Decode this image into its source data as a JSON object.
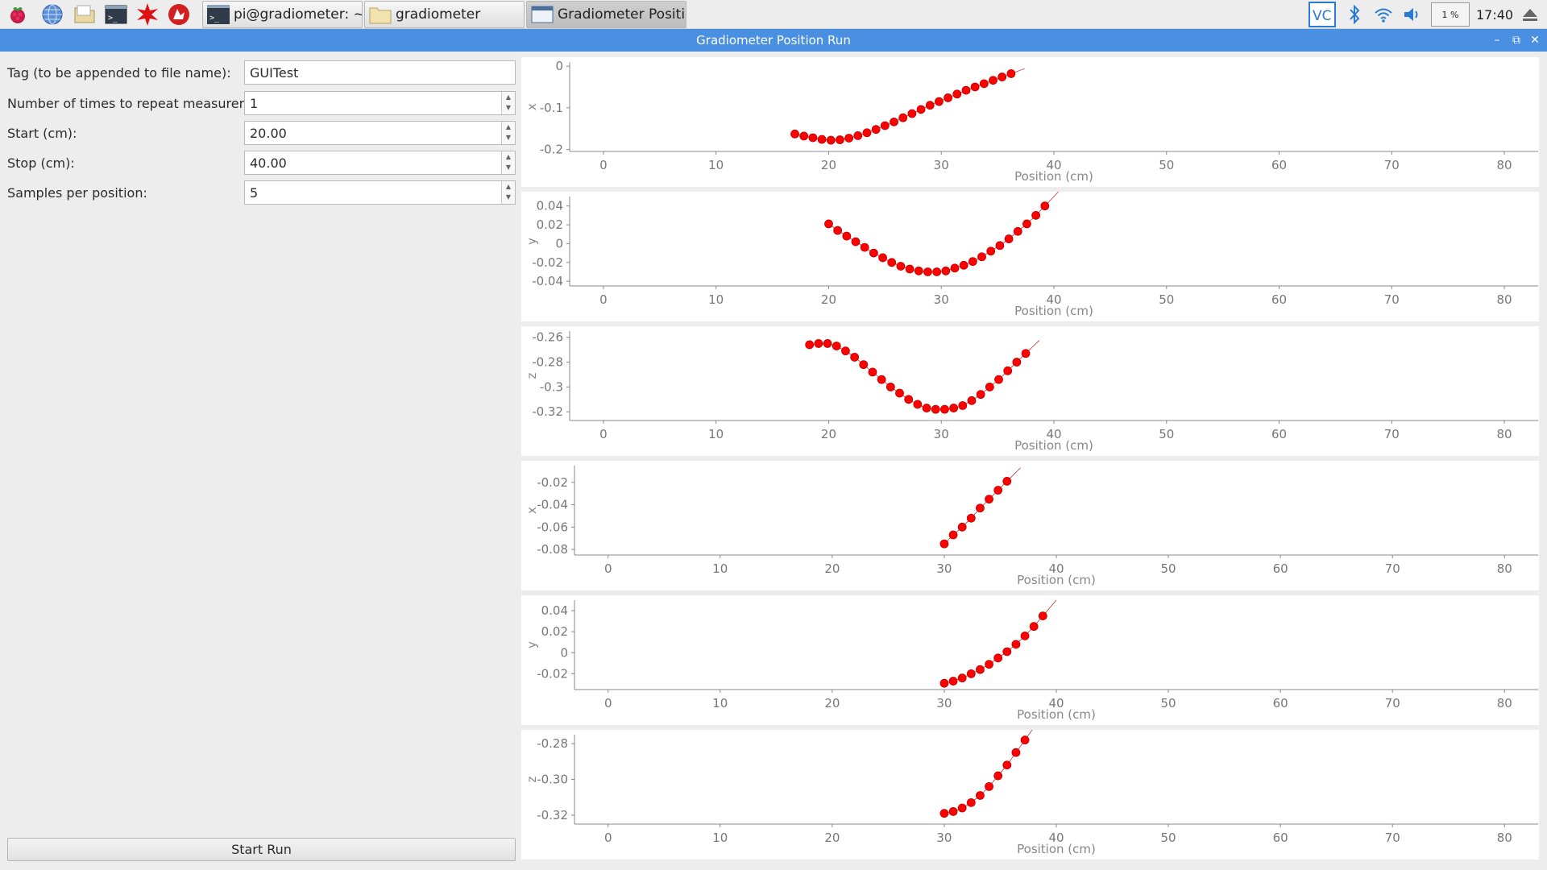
{
  "taskbar": {
    "launchers": [
      "raspberry-menu-icon",
      "web-browser-icon",
      "file-manager-icon",
      "terminal-icon",
      "mathematica-icon",
      "wolfram-icon"
    ],
    "windows": [
      {
        "label": "pi@gradiometer: ~/gr...",
        "icon": "terminal-icon",
        "active": false
      },
      {
        "label": "gradiometer",
        "icon": "folder-icon",
        "active": false
      },
      {
        "label": "Gradiometer Position ...",
        "icon": "window-icon",
        "active": true
      }
    ],
    "tray": {
      "cpu": "1 %",
      "clock": "17:40"
    }
  },
  "window": {
    "title": "Gradiometer Position Run"
  },
  "form": {
    "tag": {
      "label": "Tag (to be appended to file name):",
      "value": "GUITest"
    },
    "repeat": {
      "label": "Number of times to repeat measurement:",
      "value": "1"
    },
    "start": {
      "label": "Start (cm):",
      "value": "20.00"
    },
    "stop": {
      "label": "Stop (cm):",
      "value": "40.00"
    },
    "samples": {
      "label": "Samples per position:",
      "value": "5"
    },
    "start_run": "Start Run"
  },
  "colors": {
    "accent": "#4a90e2",
    "points": "#ff0000"
  },
  "chart_data": [
    {
      "type": "scatter",
      "ylabel": "x",
      "xlabel": "Position (cm)",
      "xlim": [
        -3,
        83
      ],
      "ylim": [
        -0.205,
        0.01
      ],
      "xticks": [
        0,
        10,
        20,
        30,
        40,
        50,
        60,
        70,
        80
      ],
      "yticks": [
        0,
        -0.1,
        -0.2
      ],
      "ytick_labels": [
        "0",
        "-0.1",
        "-0.2"
      ],
      "x": [
        17,
        17.8,
        18.6,
        19.4,
        20.2,
        21,
        21.8,
        22.6,
        23.4,
        24.2,
        25,
        25.8,
        26.6,
        27.4,
        28.2,
        29,
        29.8,
        30.6,
        31.4,
        32.2,
        33,
        33.8,
        34.6,
        35.4,
        36.2
      ],
      "y": [
        -0.163,
        -0.168,
        -0.172,
        -0.176,
        -0.178,
        -0.177,
        -0.173,
        -0.167,
        -0.16,
        -0.152,
        -0.143,
        -0.134,
        -0.124,
        -0.114,
        -0.104,
        -0.094,
        -0.085,
        -0.076,
        -0.067,
        -0.058,
        -0.05,
        -0.042,
        -0.034,
        -0.026,
        -0.018
      ]
    },
    {
      "type": "scatter",
      "ylabel": "y",
      "xlabel": "Position (cm)",
      "xlim": [
        -3,
        83
      ],
      "ylim": [
        -0.045,
        0.05
      ],
      "xticks": [
        0,
        10,
        20,
        30,
        40,
        50,
        60,
        70,
        80
      ],
      "yticks": [
        0.04,
        0.02,
        0,
        -0.02,
        -0.04
      ],
      "ytick_labels": [
        "0.04",
        "0.02",
        "0",
        "-0.02",
        "-0.04"
      ],
      "x": [
        20,
        20.8,
        21.6,
        22.4,
        23.2,
        24,
        24.8,
        25.6,
        26.4,
        27.2,
        28,
        28.8,
        29.6,
        30.4,
        31.2,
        32,
        32.8,
        33.6,
        34.4,
        35.2,
        36,
        36.8,
        37.6,
        38.4,
        39.2
      ],
      "y": [
        0.021,
        0.014,
        0.008,
        0.002,
        -0.004,
        -0.01,
        -0.015,
        -0.02,
        -0.024,
        -0.027,
        -0.029,
        -0.03,
        -0.03,
        -0.029,
        -0.026,
        -0.023,
        -0.019,
        -0.014,
        -0.008,
        -0.002,
        0.005,
        0.013,
        0.021,
        0.03,
        0.04
      ]
    },
    {
      "type": "scatter",
      "ylabel": "z",
      "xlabel": "Position (cm)",
      "xlim": [
        -3,
        83
      ],
      "ylim": [
        -0.327,
        -0.255
      ],
      "xticks": [
        0,
        10,
        20,
        30,
        40,
        50,
        60,
        70,
        80
      ],
      "yticks": [
        -0.26,
        -0.28,
        -0.3,
        -0.32
      ],
      "ytick_labels": [
        "-0.26",
        "-0.28",
        "-0.3",
        "-0.32"
      ],
      "x": [
        18.3,
        19.1,
        19.9,
        20.7,
        21.5,
        22.3,
        23.1,
        23.9,
        24.7,
        25.5,
        26.3,
        27.1,
        27.9,
        28.7,
        29.5,
        30.3,
        31.1,
        31.9,
        32.7,
        33.5,
        34.3,
        35.1,
        35.9,
        36.7,
        37.5
      ],
      "y": [
        -0.266,
        -0.265,
        -0.265,
        -0.267,
        -0.271,
        -0.276,
        -0.282,
        -0.288,
        -0.294,
        -0.3,
        -0.305,
        -0.31,
        -0.314,
        -0.317,
        -0.318,
        -0.318,
        -0.317,
        -0.315,
        -0.311,
        -0.306,
        -0.3,
        -0.294,
        -0.287,
        -0.28,
        -0.273
      ]
    },
    {
      "type": "scatter",
      "ylabel": "x",
      "xlabel": "Position (cm)",
      "xlim": [
        -3,
        83
      ],
      "ylim": [
        -0.085,
        -0.005
      ],
      "xticks": [
        0,
        10,
        20,
        30,
        40,
        50,
        60,
        70,
        80
      ],
      "yticks": [
        -0.02,
        -0.04,
        -0.06,
        -0.08
      ],
      "ytick_labels": [
        "-0.02",
        "-0.04",
        "-0.06",
        "-0.08"
      ],
      "x": [
        30,
        30.8,
        31.6,
        32.4,
        33.2,
        34,
        34.8,
        35.6
      ],
      "y": [
        -0.075,
        -0.067,
        -0.06,
        -0.052,
        -0.043,
        -0.035,
        -0.027,
        -0.019
      ]
    },
    {
      "type": "scatter",
      "ylabel": "y",
      "xlabel": "Position (cm)",
      "xlim": [
        -3,
        83
      ],
      "ylim": [
        -0.035,
        0.05
      ],
      "xticks": [
        0,
        10,
        20,
        30,
        40,
        50,
        60,
        70,
        80
      ],
      "yticks": [
        0.04,
        0.02,
        0,
        -0.02
      ],
      "ytick_labels": [
        "0.04",
        "0.02",
        "0",
        "-0.02"
      ],
      "x": [
        30,
        30.8,
        31.6,
        32.4,
        33.2,
        34,
        34.8,
        35.6,
        36.4,
        37.2,
        38,
        38.8
      ],
      "y": [
        -0.029,
        -0.027,
        -0.024,
        -0.02,
        -0.016,
        -0.011,
        -0.005,
        0.001,
        0.008,
        0.016,
        0.025,
        0.035
      ]
    },
    {
      "type": "scatter",
      "ylabel": "z",
      "xlabel": "Position (cm)",
      "xlim": [
        -3,
        83
      ],
      "ylim": [
        -0.325,
        -0.275
      ],
      "xticks": [
        0,
        10,
        20,
        30,
        40,
        50,
        60,
        70,
        80
      ],
      "yticks": [
        -0.28,
        -0.3,
        -0.32
      ],
      "ytick_labels": [
        "-0.28",
        "-0.30",
        "-0.32"
      ],
      "x": [
        30,
        30.8,
        31.6,
        32.4,
        33.2,
        34,
        34.8,
        35.6,
        36.4,
        37.2
      ],
      "y": [
        -0.319,
        -0.318,
        -0.316,
        -0.313,
        -0.309,
        -0.304,
        -0.298,
        -0.292,
        -0.285,
        -0.278
      ]
    }
  ]
}
